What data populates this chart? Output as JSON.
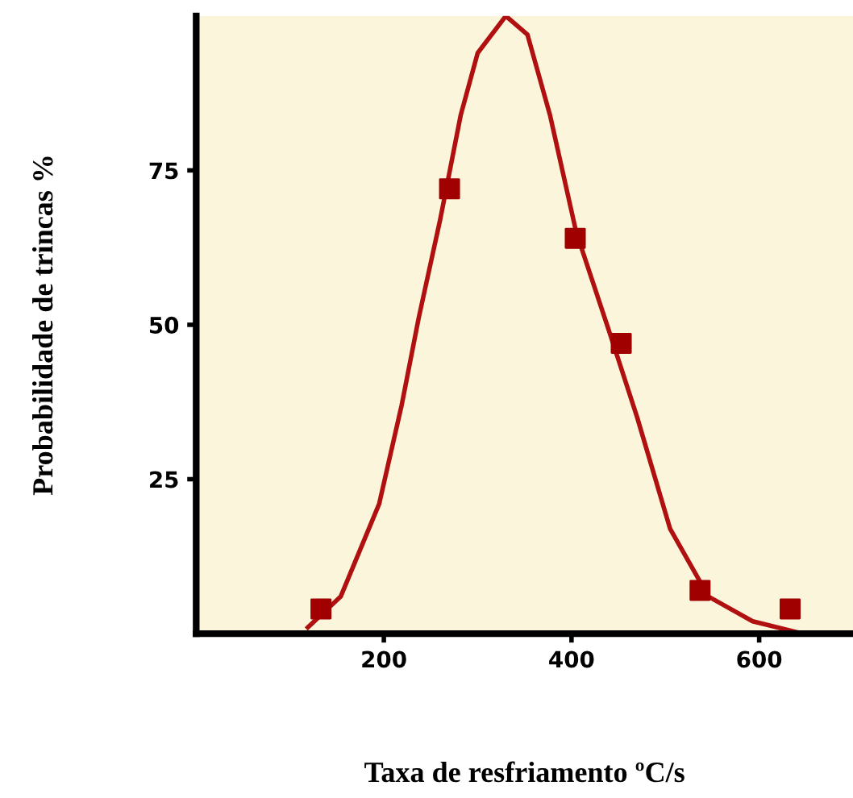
{
  "chart_data": {
    "type": "scatter",
    "xlabel": "Taxa de resfriamento ºC/s",
    "ylabel": "Probabilidade de trincas %",
    "xlim": [
      0,
      700
    ],
    "ylim": [
      0,
      100
    ],
    "xticks": [
      200,
      400,
      600
    ],
    "yticks": [
      25,
      50,
      75
    ],
    "grid": false,
    "marker": "square",
    "series": [
      {
        "color": "#a00000",
        "x": [
          133,
          270,
          404,
          453,
          537,
          633
        ],
        "values": [
          4,
          72,
          64,
          47,
          7,
          4
        ]
      },
      {
        "type": "line",
        "color": "#b01010",
        "marker": "none",
        "line_style": "solid",
        "x": [
          119,
          154,
          195,
          219,
          237,
          260,
          282,
          300,
          330,
          353,
          377,
          405,
          440,
          470,
          505,
          546,
          593,
          646
        ],
        "values": [
          1,
          6,
          21,
          37,
          51,
          67,
          84,
          94,
          100,
          97,
          84,
          65,
          49,
          35,
          17,
          6,
          2,
          0
        ]
      }
    ]
  }
}
